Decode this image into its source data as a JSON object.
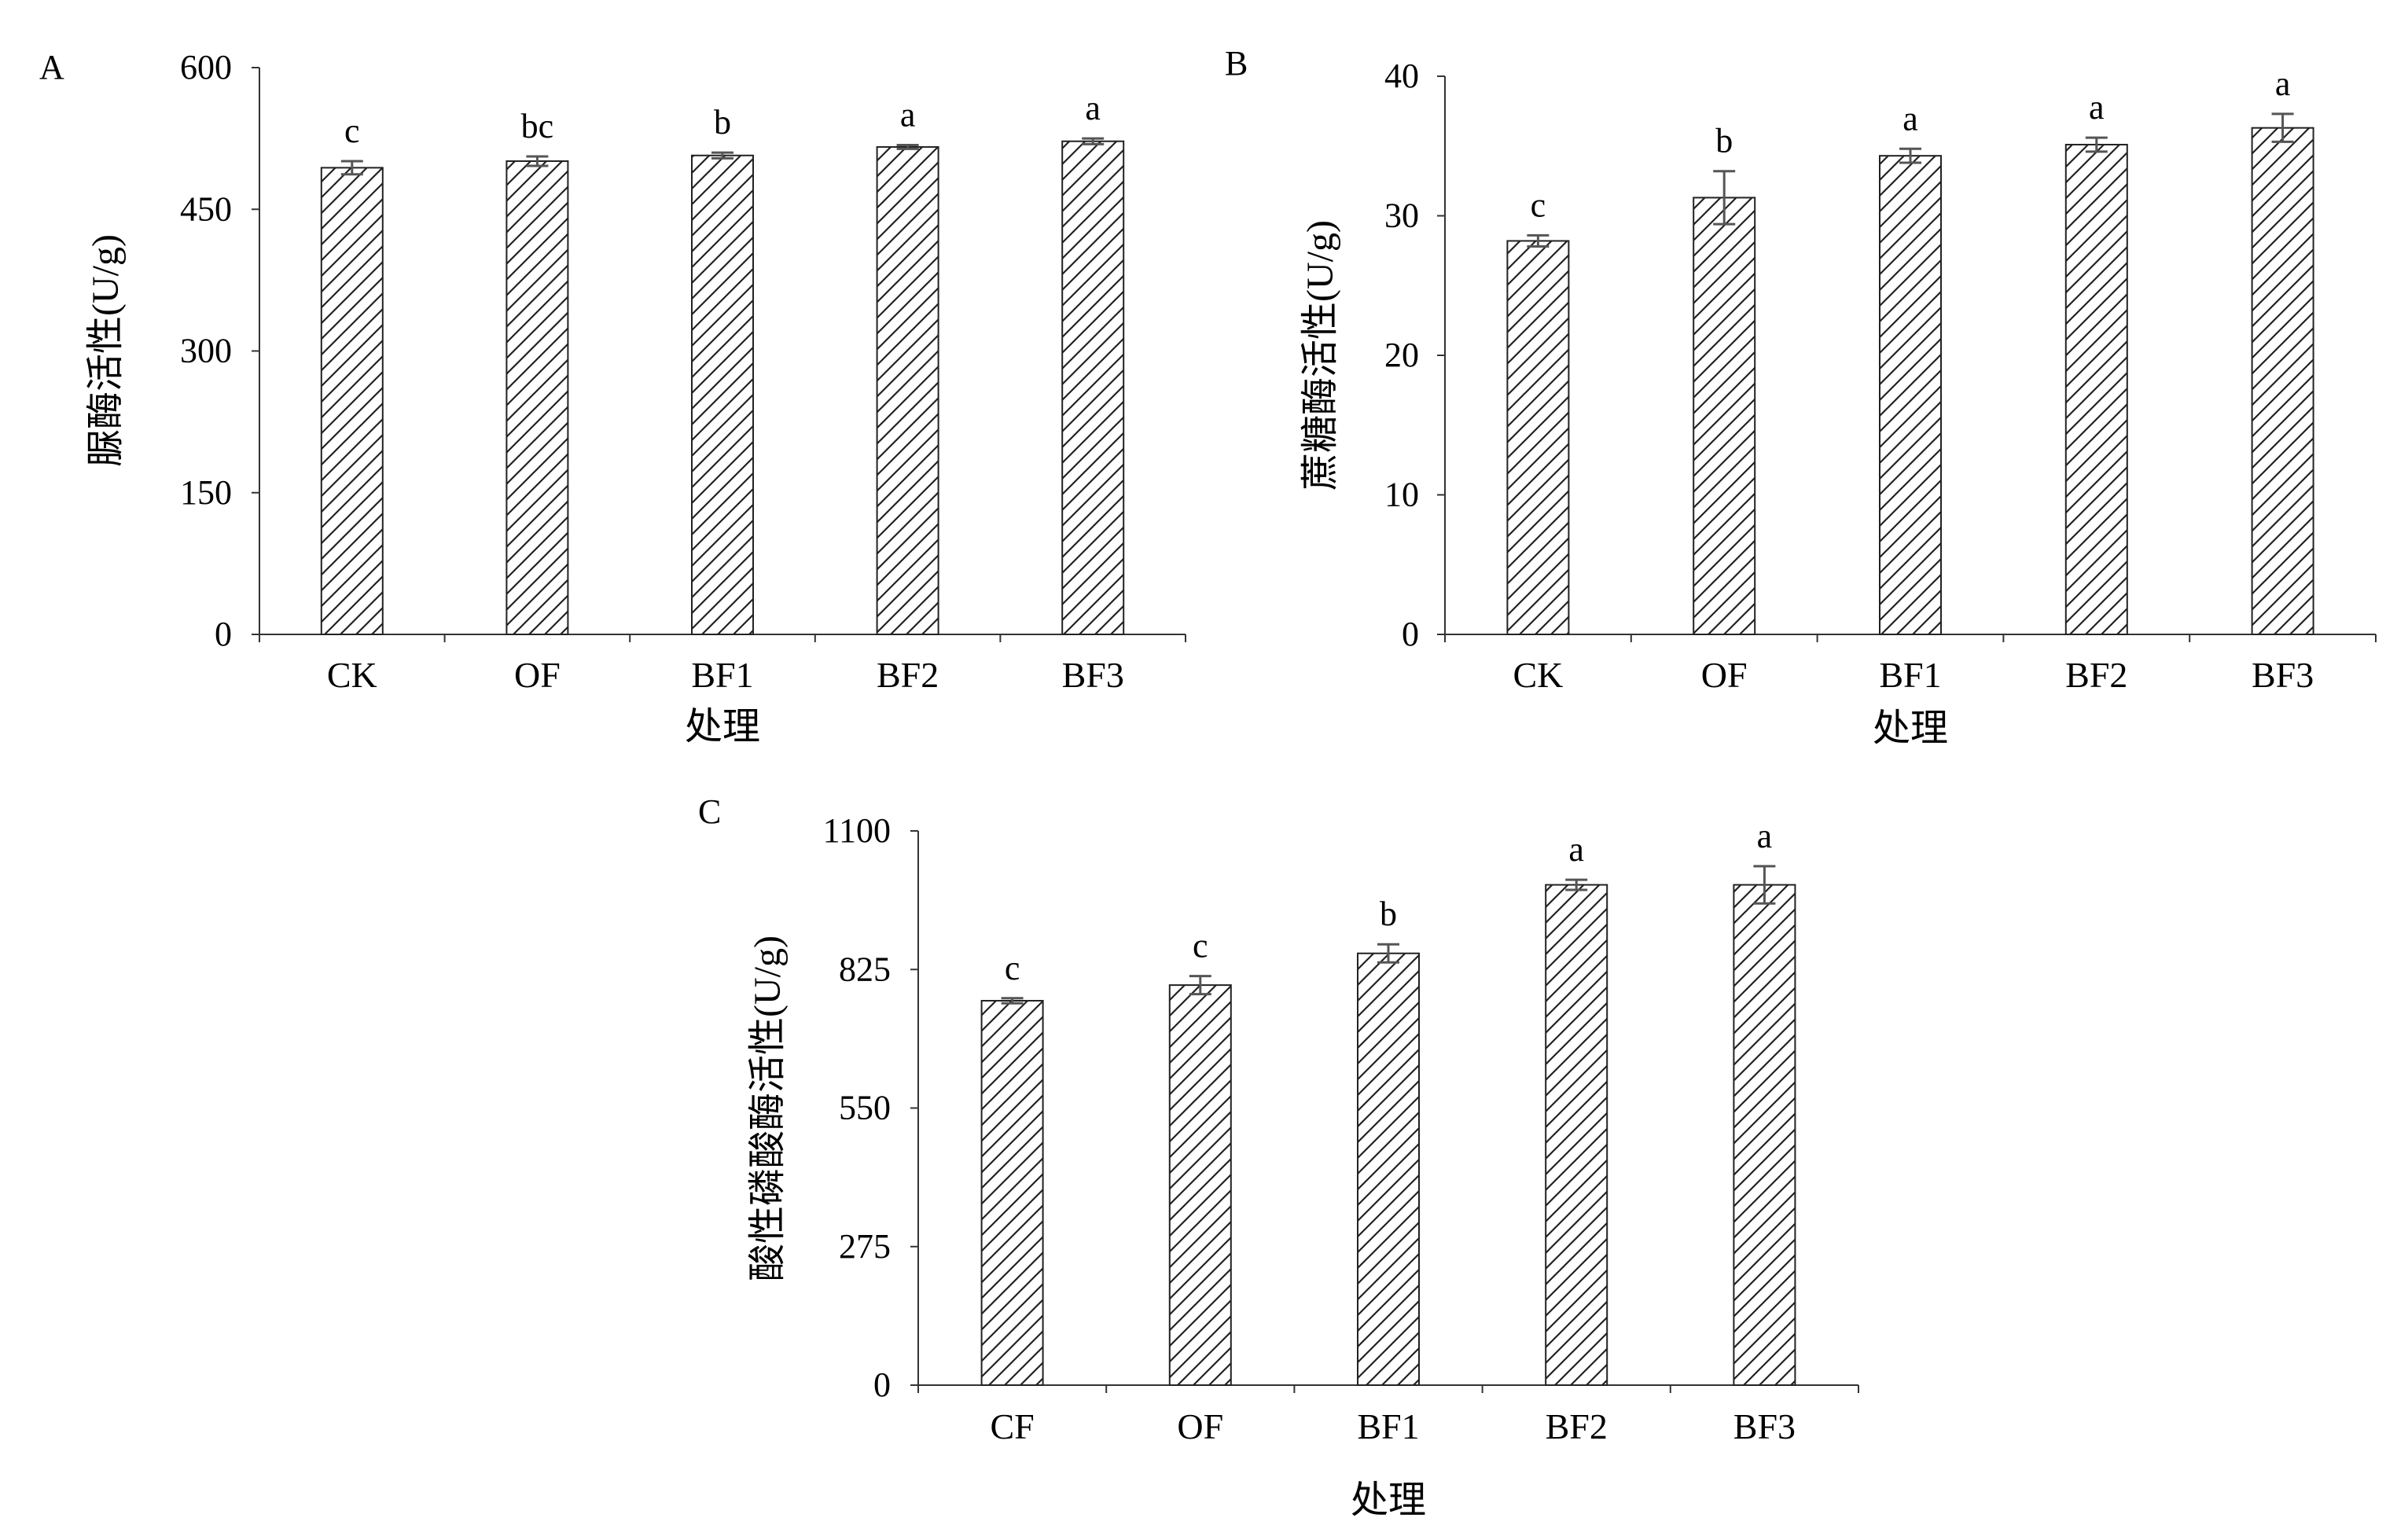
{
  "chart_data": [
    {
      "panel_label": "A",
      "type": "bar",
      "categories": [
        "CK",
        "OF",
        "BF1",
        "BF2",
        "BF3"
      ],
      "values": [
        494,
        501,
        507,
        516,
        522
      ],
      "errors": [
        7,
        5,
        3,
        2,
        3
      ],
      "significance": [
        "c",
        "bc",
        "b",
        "a",
        "a"
      ],
      "ylim": [
        0,
        600
      ],
      "yticks": [
        0,
        150,
        300,
        450,
        600
      ],
      "xlabel": "处理",
      "ylabel": "脲酶活性(U/g)"
    },
    {
      "panel_label": "B",
      "type": "bar",
      "categories": [
        "CK",
        "OF",
        "BF1",
        "BF2",
        "BF3"
      ],
      "values": [
        28.2,
        31.3,
        34.3,
        35.1,
        36.3
      ],
      "errors": [
        0.4,
        1.9,
        0.5,
        0.5,
        1.0
      ],
      "significance": [
        "c",
        "b",
        "a",
        "a",
        "a"
      ],
      "ylim": [
        0,
        40
      ],
      "yticks": [
        0,
        10,
        20,
        30,
        40
      ],
      "xlabel": "处理",
      "ylabel": "蔗糖酶活性(U/g)"
    },
    {
      "panel_label": "C",
      "type": "bar",
      "categories": [
        "CF",
        "OF",
        "BF1",
        "BF2",
        "BF3"
      ],
      "values": [
        763,
        794,
        857,
        993,
        993
      ],
      "errors": [
        5,
        18,
        18,
        10,
        37
      ],
      "significance": [
        "c",
        "c",
        "b",
        "a",
        "a"
      ],
      "ylim": [
        0,
        1100
      ],
      "yticks": [
        0,
        275,
        550,
        825,
        1100
      ],
      "xlabel": "处理",
      "ylabel": "酸性磷酸酶活性(U/g)"
    }
  ],
  "colors": {
    "axis": "#333333",
    "bar_edge": "#222222",
    "hatch": "#222222",
    "error_bar": "#555555",
    "background": "#ffffff"
  }
}
